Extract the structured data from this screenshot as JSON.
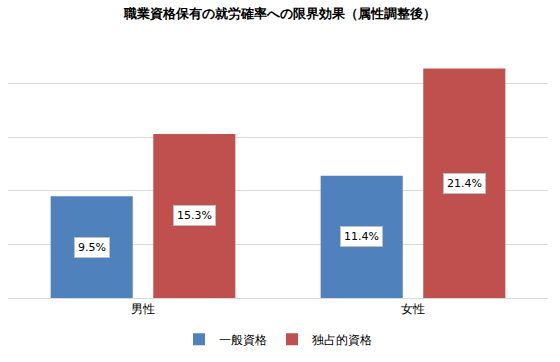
{
  "chart_data": {
    "type": "bar",
    "title": "職業資格保有の就労確率への限界効果（属性調整後）",
    "categories": [
      "男性",
      "女性"
    ],
    "series": [
      {
        "name": "一般資格",
        "color": "#4f81bd",
        "values": [
          9.5,
          11.4
        ],
        "value_labels": [
          "9.5%",
          "11.4%"
        ]
      },
      {
        "name": "独占的資格",
        "color": "#c0504d",
        "values": [
          15.3,
          21.4
        ],
        "value_labels": [
          "15.3%",
          "21.4%"
        ]
      }
    ],
    "ylim": [
      0,
      25
    ],
    "yticks": [
      0,
      5,
      10,
      15,
      20,
      25
    ],
    "grid": true,
    "legend": "bottom",
    "data_labels": true,
    "tick_labels": "x"
  }
}
